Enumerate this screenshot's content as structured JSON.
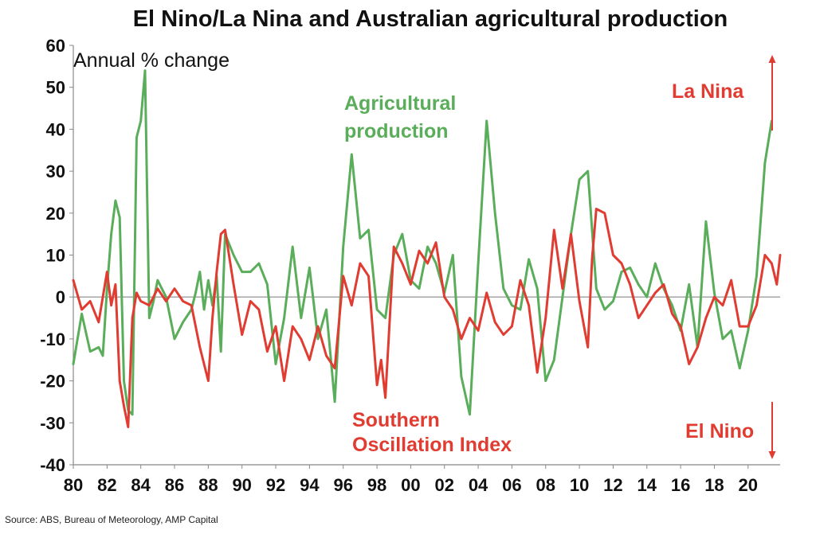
{
  "chart_data": {
    "type": "line",
    "title": "El Nino/La Nina and Australian agricultural production",
    "ylabel": "Annual % change",
    "xlim": [
      1980,
      2021.9
    ],
    "ylim": [
      -40,
      60
    ],
    "yticks": [
      -40,
      -30,
      -20,
      -10,
      0,
      10,
      20,
      30,
      40,
      50,
      60
    ],
    "xticks": [
      1980,
      1982,
      1984,
      1986,
      1988,
      1990,
      1992,
      1994,
      1996,
      1998,
      2000,
      2002,
      2004,
      2006,
      2008,
      2010,
      2012,
      2014,
      2016,
      2018,
      2020
    ],
    "xtick_labels": [
      "80",
      "82",
      "84",
      "86",
      "88",
      "90",
      "92",
      "94",
      "96",
      "98",
      "00",
      "02",
      "04",
      "06",
      "08",
      "10",
      "12",
      "14",
      "16",
      "18",
      "20"
    ],
    "grid": false,
    "source": "Source: ABS, Bureau of Meteorology, AMP Capital",
    "annotations": {
      "agri_line1": "Agricultural",
      "agri_line2": "production",
      "soi_line1": "Southern",
      "soi_line2": "Oscillation Index",
      "la_nina": "La Nina",
      "el_nino": "El Nino"
    },
    "series": [
      {
        "id": "agri",
        "color": "#5aad5a",
        "x": [
          1980.0,
          1980.5,
          1981.0,
          1981.5,
          1981.75,
          1982.0,
          1982.25,
          1982.5,
          1982.75,
          1983.0,
          1983.25,
          1983.5,
          1983.75,
          1984.0,
          1984.25,
          1984.5,
          1984.75,
          1985.0,
          1985.5,
          1986.0,
          1986.5,
          1987.0,
          1987.25,
          1987.5,
          1987.75,
          1988.0,
          1988.25,
          1988.5,
          1988.75,
          1989.0,
          1989.5,
          1990.0,
          1990.5,
          1991.0,
          1991.5,
          1992.0,
          1992.5,
          1993.0,
          1993.5,
          1994.0,
          1994.5,
          1995.0,
          1995.5,
          1996.0,
          1996.5,
          1997.0,
          1997.5,
          1998.0,
          1998.5,
          1999.0,
          1999.5,
          2000.0,
          2000.5,
          2001.0,
          2001.5,
          2002.0,
          2002.5,
          2003.0,
          2003.5,
          2004.0,
          2004.5,
          2005.0,
          2005.5,
          2006.0,
          2006.5,
          2007.0,
          2007.5,
          2008.0,
          2008.5,
          2009.0,
          2009.5,
          2010.0,
          2010.5,
          2011.0,
          2011.5,
          2012.0,
          2012.5,
          2013.0,
          2013.5,
          2014.0,
          2014.5,
          2015.0,
          2015.5,
          2016.0,
          2016.5,
          2017.0,
          2017.5,
          2018.0,
          2018.5,
          2019.0,
          2019.5,
          2020.0,
          2020.5,
          2021.0,
          2021.4
        ],
        "values": [
          -16,
          -4,
          -13,
          -12,
          -14,
          2,
          15,
          23,
          19,
          -20,
          -27,
          -28,
          38,
          42,
          54,
          -5,
          -1,
          4,
          0,
          -10,
          -6,
          -3,
          1,
          6,
          -3,
          4,
          -2,
          5,
          -13,
          15,
          10,
          6,
          6,
          8,
          3,
          -16,
          -5,
          12,
          -5,
          7,
          -10,
          -3,
          -25,
          12,
          34,
          14,
          16,
          -3,
          -5,
          10,
          15,
          4,
          2,
          12,
          8,
          1,
          10,
          -19,
          -28,
          8,
          42,
          20,
          2,
          -2,
          -3,
          9,
          2,
          -20,
          -15,
          0,
          15,
          28,
          30,
          2,
          -3,
          -1,
          6,
          7,
          3,
          0,
          8,
          2,
          -2,
          -8,
          3,
          -12,
          18,
          1,
          -10,
          -8,
          -17,
          -8,
          5,
          32,
          42
        ]
      },
      {
        "id": "soi",
        "color": "#e03c31",
        "x": [
          1980.0,
          1980.5,
          1981.0,
          1981.5,
          1982.0,
          1982.25,
          1982.5,
          1982.75,
          1983.0,
          1983.25,
          1983.5,
          1983.75,
          1984.0,
          1984.5,
          1985.0,
          1985.5,
          1986.0,
          1986.5,
          1987.0,
          1987.5,
          1988.0,
          1988.25,
          1988.5,
          1988.75,
          1989.0,
          1989.5,
          1990.0,
          1990.5,
          1991.0,
          1991.5,
          1992.0,
          1992.5,
          1993.0,
          1993.5,
          1994.0,
          1994.5,
          1995.0,
          1995.5,
          1996.0,
          1996.5,
          1997.0,
          1997.5,
          1998.0,
          1998.25,
          1998.5,
          1999.0,
          1999.5,
          2000.0,
          2000.5,
          2001.0,
          2001.5,
          2002.0,
          2002.5,
          2003.0,
          2003.5,
          2004.0,
          2004.5,
          2005.0,
          2005.5,
          2006.0,
          2006.5,
          2007.0,
          2007.5,
          2008.0,
          2008.5,
          2009.0,
          2009.5,
          2010.0,
          2010.5,
          2010.75,
          2011.0,
          2011.5,
          2012.0,
          2012.5,
          2013.0,
          2013.5,
          2014.0,
          2014.5,
          2015.0,
          2015.5,
          2016.0,
          2016.5,
          2017.0,
          2017.5,
          2018.0,
          2018.5,
          2019.0,
          2019.5,
          2020.0,
          2020.5,
          2021.0,
          2021.4,
          2021.7,
          2021.9
        ],
        "values": [
          4,
          -3,
          -1,
          -6,
          6,
          -2,
          3,
          -20,
          -26,
          -31,
          -5,
          1,
          -1,
          -2,
          2,
          -1,
          2,
          -1,
          -2,
          -12,
          -20,
          -5,
          6,
          15,
          16,
          3,
          -9,
          -1,
          -3,
          -13,
          -7,
          -20,
          -7,
          -10,
          -15,
          -7,
          -14,
          -17,
          5,
          -2,
          8,
          5,
          -21,
          -15,
          -24,
          12,
          8,
          3,
          11,
          8,
          13,
          0,
          -3,
          -10,
          -5,
          -8,
          1,
          -6,
          -9,
          -7,
          4,
          -2,
          -18,
          -5,
          16,
          2,
          15,
          -1,
          -12,
          9,
          21,
          20,
          10,
          8,
          3,
          -5,
          -2,
          1,
          3,
          -4,
          -7,
          -16,
          -12,
          -5,
          0,
          -2,
          4,
          -7,
          -7,
          -2,
          10,
          8,
          3,
          10
        ]
      }
    ]
  }
}
